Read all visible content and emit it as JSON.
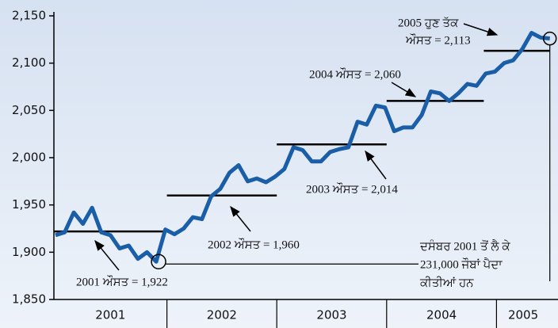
{
  "chart_data": {
    "type": "line",
    "categories": [
      null,
      null,
      null,
      null,
      null,
      null,
      null,
      null,
      null,
      null,
      null,
      null,
      null,
      null,
      null,
      null,
      null,
      null,
      null,
      null,
      null,
      null,
      null,
      null,
      null,
      null,
      null,
      null,
      null,
      null,
      null,
      null,
      null,
      null,
      null,
      null,
      null,
      null,
      null,
      null,
      null,
      null,
      null,
      null,
      null,
      null,
      null,
      null,
      null,
      null,
      null,
      null,
      null,
      null,
      null
    ],
    "year_labels": [
      "2001",
      "2002",
      "2003",
      "2004",
      "2005"
    ],
    "series": [
      {
        "color": "#1b5ea8",
        "values": [
          1918,
          1921,
          1942,
          1930,
          1947,
          1921,
          1918,
          1904,
          1907,
          1893,
          1900,
          1890,
          1924,
          1919,
          1925,
          1937,
          1935,
          1959,
          1967,
          1984,
          1992,
          1975,
          1978,
          1974,
          1980,
          1988,
          2011,
          2008,
          1996,
          1996,
          2006,
          2009,
          2011,
          2038,
          2035,
          2055,
          2053,
          2028,
          2032,
          2032,
          2045,
          2070,
          2068,
          2060,
          2068,
          2078,
          2076,
          2089,
          2091,
          2100,
          2103,
          2115,
          2132,
          2127,
          2126
        ]
      }
    ],
    "averages": [
      {
        "value": 1922,
        "label": [
          "2001 ਔਸਤ = 1,922"
        ]
      },
      {
        "value": 1960,
        "label": [
          "2002 ਔਸਤ = 1,960"
        ]
      },
      {
        "value": 2014,
        "label": [
          "2003 ਔਸਤ = 2,014"
        ]
      },
      {
        "value": 2060,
        "label": [
          "2004 ਔਸਤ = 2,060"
        ]
      },
      {
        "value": 2113,
        "label": [
          "2005 ਹੁਣ ਤੱਕ",
          "ਔਸਤ  = 2,113"
        ]
      }
    ],
    "annotation": [
      "ਦਸੰਬਰ 2001 ਤੋਂ ਲੈ ਕੇ",
      "231,000 ਜੌਬਾਂ ਪੈਦਾ",
      "ਕੀਤੀਆਂ ਹਨ"
    ],
    "ylim": [
      1850,
      2150
    ],
    "yticks": [
      {
        "value": 1850,
        "label": "1,850"
      },
      {
        "value": 1900,
        "label": "1,900"
      },
      {
        "value": 1950,
        "label": "1,950"
      },
      {
        "value": 2000,
        "label": "2,000"
      },
      {
        "value": 2050,
        "label": "2,050"
      },
      {
        "value": 2100,
        "label": "2,100"
      },
      {
        "value": 2150,
        "label": "2,150"
      }
    ]
  }
}
